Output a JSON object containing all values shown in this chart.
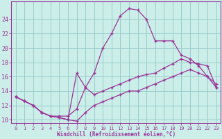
{
  "xlabel": "Windchill (Refroidissement éolien,°C)",
  "bg_color": "#cceee8",
  "grid_color": "#99cccc",
  "line_color": "#993399",
  "spine_color": "#993399",
  "xlim": [
    -0.5,
    23.5
  ],
  "ylim": [
    9.5,
    26.5
  ],
  "xticks": [
    0,
    1,
    2,
    3,
    4,
    5,
    6,
    7,
    8,
    9,
    10,
    11,
    12,
    13,
    14,
    15,
    16,
    17,
    18,
    19,
    20,
    21,
    22,
    23
  ],
  "yticks": [
    10,
    12,
    14,
    16,
    18,
    20,
    22,
    24
  ],
  "line1_x": [
    0,
    1,
    2,
    3,
    4,
    5,
    6,
    7,
    8,
    9,
    10,
    11,
    12,
    13,
    14,
    15,
    16,
    17,
    18,
    19,
    20,
    21,
    22,
    23
  ],
  "line1_y": [
    13.2,
    12.6,
    12.0,
    11.0,
    10.5,
    10.5,
    10.5,
    11.5,
    14.5,
    16.5,
    20.0,
    22.0,
    24.5,
    25.5,
    25.3,
    24.0,
    21.0,
    21.0,
    21.0,
    19.0,
    18.5,
    17.5,
    16.0,
    15.0
  ],
  "line2_x": [
    0,
    1,
    2,
    3,
    4,
    5,
    6,
    7,
    8,
    9,
    10,
    11,
    12,
    13,
    14,
    15,
    16,
    17,
    18,
    19,
    20,
    21,
    22,
    23
  ],
  "line2_y": [
    13.2,
    12.6,
    12.0,
    11.0,
    10.5,
    10.3,
    10.0,
    16.5,
    14.5,
    13.5,
    14.0,
    14.5,
    15.0,
    15.5,
    16.0,
    16.3,
    16.5,
    17.2,
    17.8,
    18.5,
    18.0,
    17.8,
    17.5,
    14.5
  ],
  "line3_x": [
    0,
    1,
    2,
    3,
    4,
    5,
    6,
    7,
    8,
    9,
    10,
    11,
    12,
    13,
    14,
    15,
    16,
    17,
    18,
    19,
    20,
    21,
    22,
    23
  ],
  "line3_y": [
    13.2,
    12.6,
    12.0,
    11.0,
    10.5,
    10.3,
    10.0,
    9.8,
    11.0,
    12.0,
    12.5,
    13.0,
    13.5,
    14.0,
    14.0,
    14.5,
    15.0,
    15.5,
    16.0,
    16.5,
    17.0,
    16.5,
    16.0,
    14.5
  ]
}
